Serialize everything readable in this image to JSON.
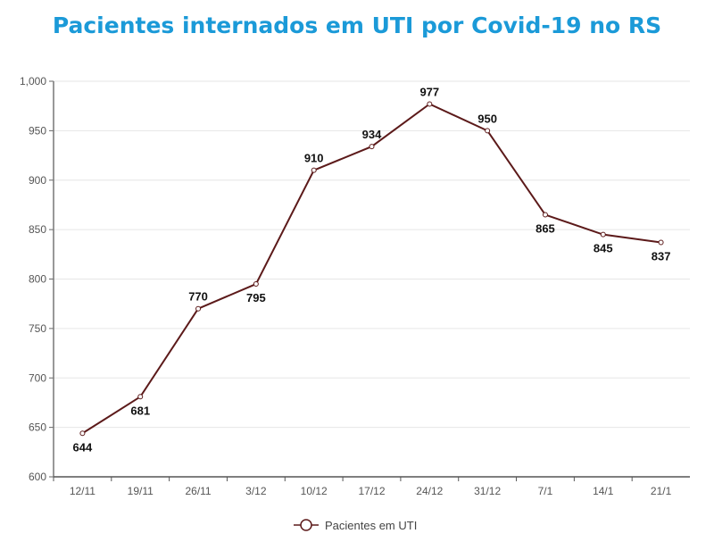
{
  "chart_data": {
    "type": "line",
    "title": "Pacientes internados em UTI por Covid-19 no RS",
    "categories": [
      "12/11",
      "19/11",
      "26/11",
      "3/12",
      "10/12",
      "17/12",
      "24/12",
      "31/12",
      "7/1",
      "14/1",
      "21/1"
    ],
    "series": [
      {
        "name": "Pacientes em UTI",
        "values": [
          644,
          681,
          770,
          795,
          910,
          934,
          977,
          950,
          865,
          845,
          837
        ]
      }
    ],
    "yticks": [
      "600",
      "650",
      "700",
      "750",
      "800",
      "850",
      "900",
      "950",
      "1,000"
    ],
    "ylim": [
      600,
      1000
    ],
    "grid": true,
    "legend": "bottom",
    "colors": {
      "line": "#5c1a1a",
      "title": "#1b9ad8"
    }
  }
}
